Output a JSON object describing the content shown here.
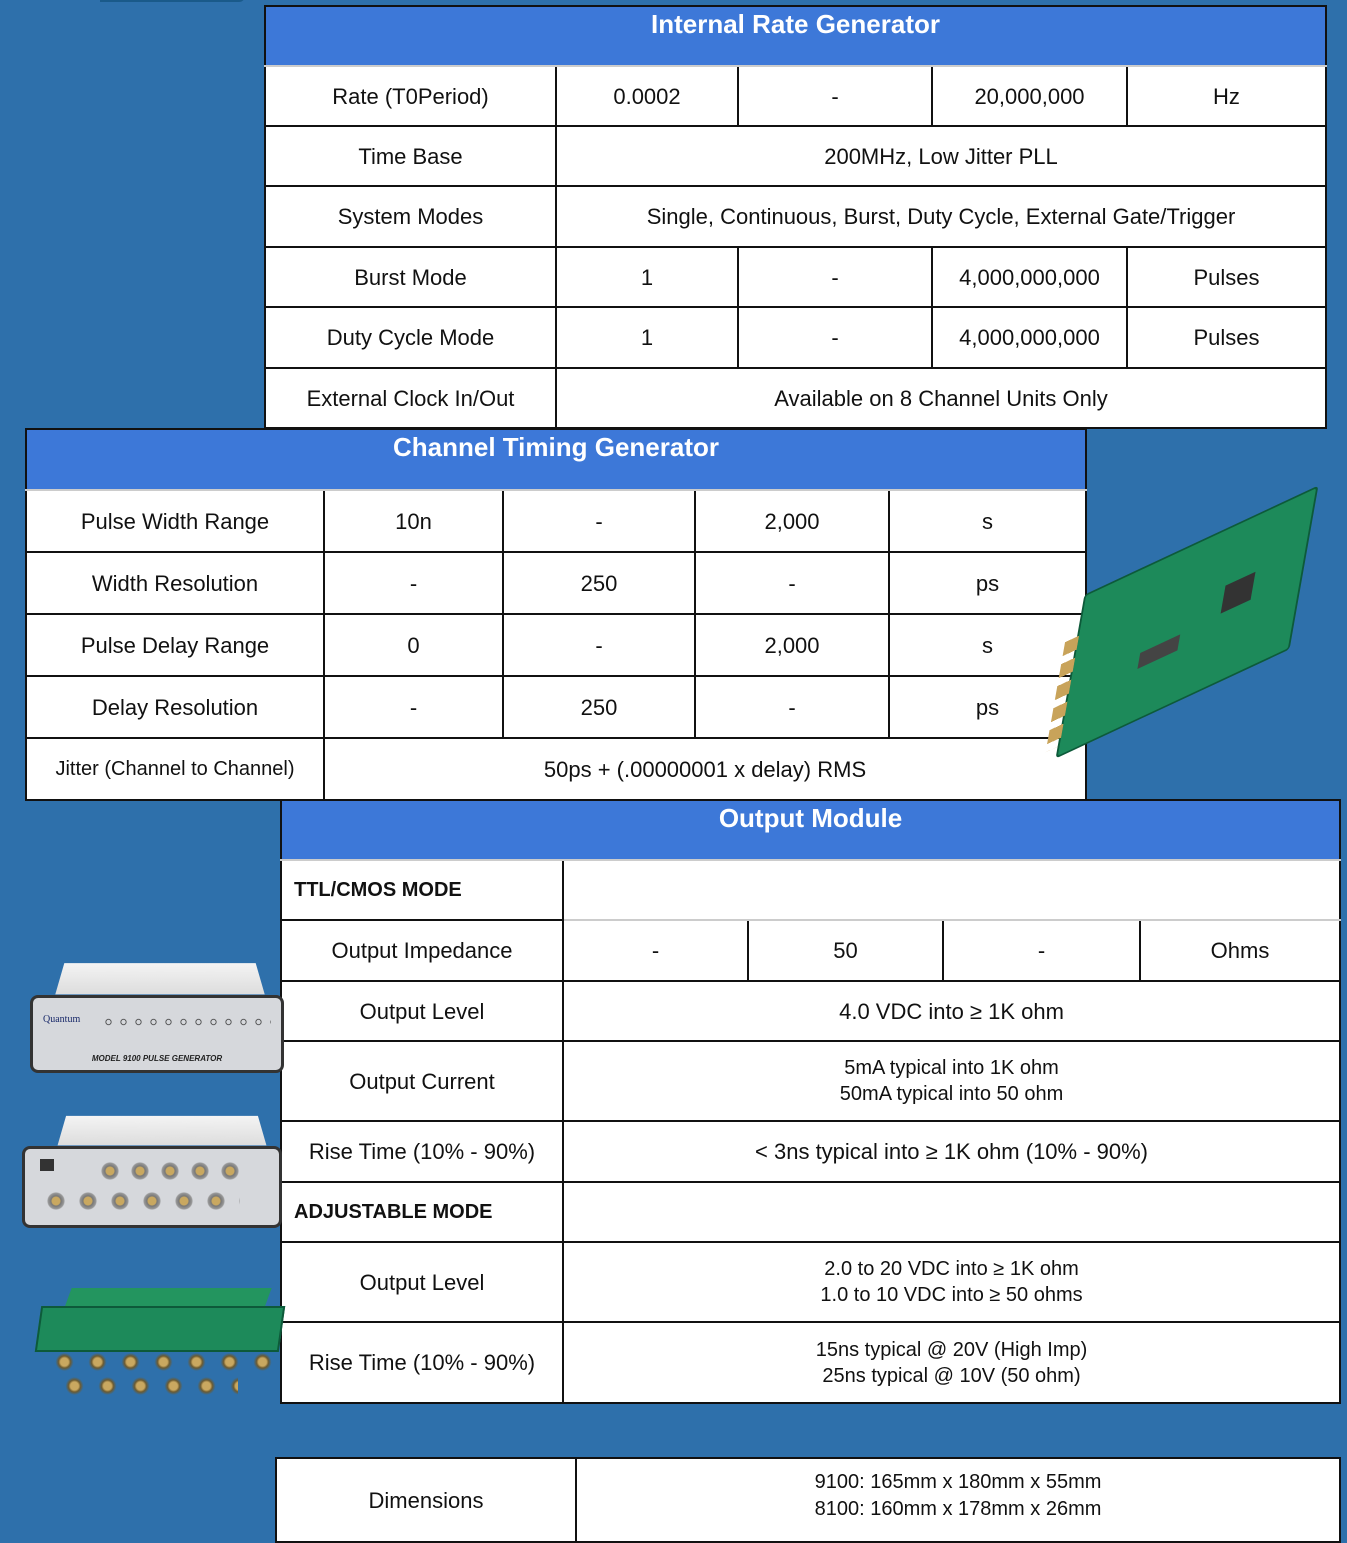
{
  "internal_rate": {
    "title": "Internal Rate Generator",
    "rows": [
      {
        "label": "Rate (T0Period)",
        "min": "0.0002",
        "typ": "-",
        "max": "20,000,000",
        "unit": "Hz"
      },
      {
        "label": "Time Base",
        "value": "200MHz, Low Jitter PLL"
      },
      {
        "label": "System Modes",
        "value": "Single, Continuous, Burst, Duty Cycle, External Gate/Trigger"
      },
      {
        "label": "Burst Mode",
        "min": "1",
        "typ": "-",
        "max": "4,000,000,000",
        "unit": "Pulses"
      },
      {
        "label": "Duty Cycle Mode",
        "min": "1",
        "typ": "-",
        "max": "4,000,000,000",
        "unit": "Pulses"
      },
      {
        "label": "External Clock In/Out",
        "value": "Available on 8 Channel Units Only"
      }
    ]
  },
  "channel_timing": {
    "title": "Channel Timing Generator",
    "rows": [
      {
        "label": "Pulse Width Range",
        "min": "10n",
        "typ": "-",
        "max": "2,000",
        "unit": "s"
      },
      {
        "label": "Width Resolution",
        "min": "-",
        "typ": "250",
        "max": "-",
        "unit": "ps"
      },
      {
        "label": "Pulse Delay Range",
        "min": "0",
        "typ": "-",
        "max": "2,000",
        "unit": "s"
      },
      {
        "label": "Delay Resolution",
        "min": "-",
        "typ": "250",
        "max": "-",
        "unit": "ps"
      },
      {
        "label": "Jitter (Channel to Channel)",
        "value": "50ps + (.00000001 x delay) RMS"
      }
    ]
  },
  "output_module": {
    "title": "Output Module",
    "ttl_heading": "TTL/CMOS MODE",
    "impedance": {
      "label": "Output Impedance",
      "min": "-",
      "typ": "50",
      "max": "-",
      "unit": "Ohms"
    },
    "ttl_level": {
      "label": "Output Level",
      "value": "4.0 VDC into ≥ 1K ohm"
    },
    "ttl_current": {
      "label": "Output Current",
      "line1": "5mA typical into 1K ohm",
      "line2": "50mA typical into 50 ohm"
    },
    "ttl_rise": {
      "label": "Rise Time (10% - 90%)",
      "value": "< 3ns typical into ≥ 1K ohm (10% - 90%)"
    },
    "adj_heading": "ADJUSTABLE MODE",
    "adj_level": {
      "label": "Output Level",
      "line1": "2.0 to 20 VDC into ≥ 1K ohm",
      "line2": "1.0 to 10 VDC into ≥ 50 ohms"
    },
    "adj_rise": {
      "label": "Rise Time (10% - 90%)",
      "line1": "15ns typical @ 20V (High Imp)",
      "line2": "25ns typical @ 10V (50 ohm)"
    }
  },
  "dimensions": {
    "label": "Dimensions",
    "line1": "9100: 165mm x 180mm x 55mm",
    "line2": "8100: 160mm x 178mm x 26mm"
  },
  "images": {
    "front_panel_text": "MODEL 9100 PULSE GENERATOR",
    "logo": "Quantum"
  },
  "colors": {
    "background": "#2e70ab",
    "header": "#3d78d8"
  }
}
